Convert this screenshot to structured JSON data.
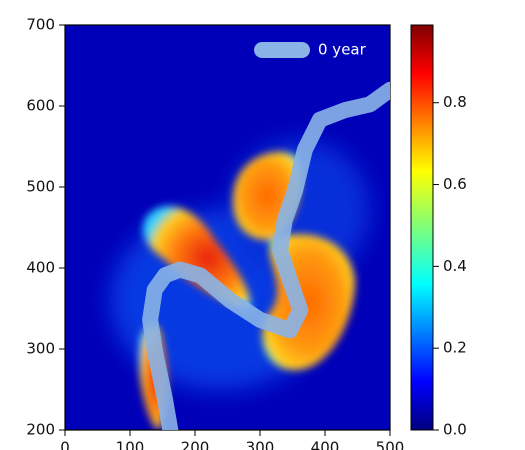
{
  "chart_data": {
    "type": "line",
    "x": [
      162,
      154,
      138,
      131,
      138,
      154,
      177,
      208,
      254,
      300,
      346,
      362,
      346,
      331,
      338,
      354,
      369,
      392,
      431,
      469,
      500
    ],
    "series": [
      {
        "name": "0 year",
        "color": "#8ab4e8",
        "values": [
          200,
          237,
          299,
          336,
          373,
          391,
          398,
          391,
          360,
          336,
          323,
          348,
          385,
          422,
          459,
          496,
          546,
          583,
          595,
          602,
          620
        ]
      }
    ],
    "xlim": [
      0,
      500
    ],
    "xticks": [
      0,
      100,
      200,
      300,
      400,
      500
    ],
    "ylim": [
      200,
      700
    ],
    "yticks": [
      200,
      300,
      400,
      500,
      600,
      700
    ],
    "colorbar": {
      "lim": [
        0,
        0.99
      ],
      "ticks": [
        {
          "value": 0,
          "label": "0.0"
        },
        0.2,
        0.4,
        0.6,
        0.8
      ]
    },
    "legend": "upper right"
  }
}
